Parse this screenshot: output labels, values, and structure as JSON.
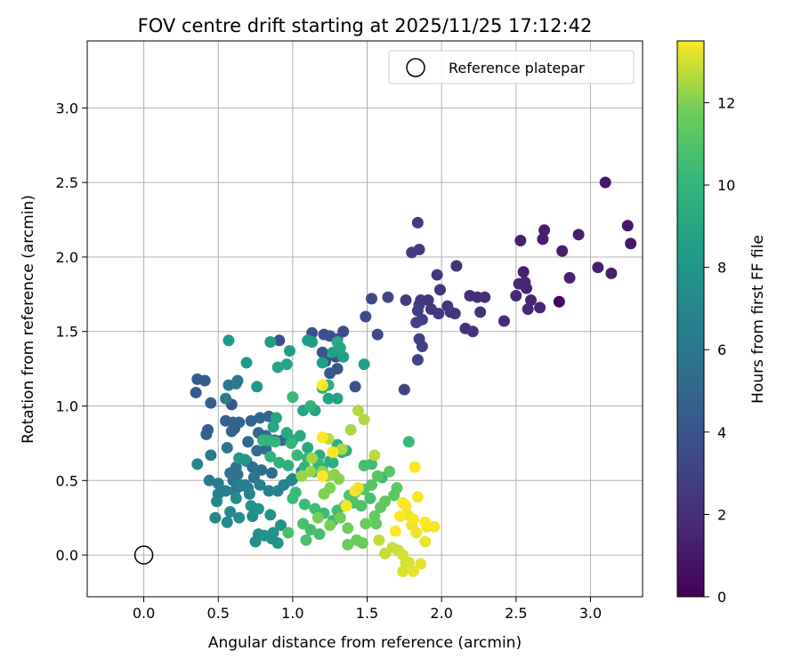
{
  "chart_data": {
    "type": "scatter",
    "title": "FOV centre drift starting at 2025/11/25 17:12:42",
    "xlabel": "Angular distance from reference (arcmin)",
    "ylabel": "Rotation from reference (arcmin)",
    "xlim": [
      -0.38,
      3.35
    ],
    "ylim": [
      -0.28,
      3.45
    ],
    "xticks": [
      "0.0",
      "0.5",
      "1.0",
      "1.5",
      "2.0",
      "2.5",
      "3.0"
    ],
    "yticks": [
      "0.0",
      "0.5",
      "1.0",
      "1.5",
      "2.0",
      "2.5",
      "3.0"
    ],
    "grid": true,
    "legend": {
      "label": "Reference platepar",
      "placement": "upper right"
    },
    "reference_point": {
      "x": 0.0,
      "y": 0.0
    },
    "colorbar": {
      "label": "Hours from first FF file",
      "min": 0,
      "max": 13.5,
      "colormap": "viridis",
      "ticks": [
        "0",
        "2",
        "4",
        "6",
        "8",
        "10",
        "12"
      ]
    },
    "points": [
      [
        3.1,
        2.5,
        1.0
      ],
      [
        3.27,
        2.09,
        1.0
      ],
      [
        3.25,
        2.21,
        1.0
      ],
      [
        2.69,
        2.18,
        1.2
      ],
      [
        2.68,
        2.12,
        1.2
      ],
      [
        2.92,
        2.15,
        1.2
      ],
      [
        2.81,
        2.04,
        1.2
      ],
      [
        2.53,
        2.11,
        1.3
      ],
      [
        3.05,
        1.93,
        1.3
      ],
      [
        3.14,
        1.89,
        1.3
      ],
      [
        2.86,
        1.86,
        1.4
      ],
      [
        2.79,
        1.7,
        0.1
      ],
      [
        2.55,
        1.9,
        1.4
      ],
      [
        2.56,
        1.83,
        1.5
      ],
      [
        2.57,
        1.79,
        1.5
      ],
      [
        2.52,
        1.82,
        1.6
      ],
      [
        2.6,
        1.71,
        1.6
      ],
      [
        2.66,
        1.66,
        1.6
      ],
      [
        2.58,
        1.65,
        1.7
      ],
      [
        2.5,
        1.74,
        1.7
      ],
      [
        2.42,
        1.57,
        1.8
      ],
      [
        2.29,
        1.73,
        2.0
      ],
      [
        2.24,
        1.73,
        2.0
      ],
      [
        2.19,
        1.74,
        2.0
      ],
      [
        2.26,
        1.63,
        2.1
      ],
      [
        2.21,
        1.5,
        2.2
      ],
      [
        2.16,
        1.52,
        2.2
      ],
      [
        2.1,
        1.94,
        2.2
      ],
      [
        2.09,
        1.62,
        2.3
      ],
      [
        2.06,
        1.63,
        2.3
      ],
      [
        2.04,
        1.67,
        2.4
      ],
      [
        1.99,
        1.78,
        2.4
      ],
      [
        1.97,
        1.88,
        2.4
      ],
      [
        1.98,
        1.62,
        2.5
      ],
      [
        1.93,
        1.65,
        2.5
      ],
      [
        1.91,
        1.71,
        2.5
      ],
      [
        1.86,
        1.71,
        2.6
      ],
      [
        1.85,
        1.68,
        2.6
      ],
      [
        1.84,
        2.23,
        2.6
      ],
      [
        1.85,
        2.05,
        2.6
      ],
      [
        1.8,
        2.03,
        2.7
      ],
      [
        1.76,
        1.71,
        2.7
      ],
      [
        1.87,
        1.58,
        2.8
      ],
      [
        1.84,
        1.64,
        2.8
      ],
      [
        1.83,
        1.56,
        2.9
      ],
      [
        1.85,
        1.45,
        2.9
      ],
      [
        1.87,
        1.4,
        3.0
      ],
      [
        1.84,
        1.31,
        3.0
      ],
      [
        1.75,
        1.11,
        3.1
      ],
      [
        1.64,
        1.73,
        3.2
      ],
      [
        1.53,
        1.72,
        3.3
      ],
      [
        1.57,
        1.48,
        3.4
      ],
      [
        1.49,
        1.6,
        3.4
      ],
      [
        1.34,
        1.5,
        3.5
      ],
      [
        1.3,
        1.45,
        3.6
      ],
      [
        1.25,
        1.47,
        3.6
      ],
      [
        1.21,
        1.48,
        3.7
      ],
      [
        1.13,
        1.49,
        3.7
      ],
      [
        1.42,
        1.13,
        3.8
      ],
      [
        0.91,
        1.44,
        3.8
      ],
      [
        1.2,
        1.36,
        3.9
      ],
      [
        1.22,
        1.3,
        4.0
      ],
      [
        1.29,
        1.33,
        4.0
      ],
      [
        1.3,
        1.25,
        4.1
      ],
      [
        1.25,
        1.22,
        4.2
      ],
      [
        0.59,
        1.01,
        4.2
      ],
      [
        0.35,
        1.09,
        4.3
      ],
      [
        0.36,
        1.18,
        4.4
      ],
      [
        0.41,
        1.17,
        4.4
      ],
      [
        0.45,
        1.02,
        4.5
      ],
      [
        0.43,
        0.84,
        4.6
      ],
      [
        0.42,
        0.81,
        4.6
      ],
      [
        0.55,
        0.9,
        4.6
      ],
      [
        0.6,
        0.89,
        4.7
      ],
      [
        0.61,
        0.85,
        4.7
      ],
      [
        0.59,
        0.83,
        4.8
      ],
      [
        0.64,
        0.89,
        4.8
      ],
      [
        0.72,
        0.9,
        4.9
      ],
      [
        0.78,
        0.92,
        4.9
      ],
      [
        0.84,
        0.93,
        5.0
      ],
      [
        0.7,
        0.76,
        5.0
      ],
      [
        0.77,
        0.82,
        5.1
      ],
      [
        0.82,
        0.8,
        5.2
      ],
      [
        0.88,
        0.77,
        5.2
      ],
      [
        0.93,
        0.77,
        5.3
      ],
      [
        0.76,
        0.7,
        5.3
      ],
      [
        0.82,
        0.71,
        5.4
      ],
      [
        0.69,
        0.63,
        5.4
      ],
      [
        0.73,
        0.59,
        5.5
      ],
      [
        0.79,
        0.57,
        5.5
      ],
      [
        0.86,
        0.55,
        5.6
      ],
      [
        0.74,
        0.52,
        5.7
      ],
      [
        0.63,
        0.54,
        5.7
      ],
      [
        0.58,
        0.55,
        5.8
      ],
      [
        0.62,
        0.59,
        5.8
      ],
      [
        0.68,
        0.47,
        5.9
      ],
      [
        0.64,
        0.46,
        5.9
      ],
      [
        0.6,
        0.5,
        6.0
      ],
      [
        0.56,
        0.72,
        6.0
      ],
      [
        0.62,
        1.15,
        6.1
      ],
      [
        0.63,
        1.17,
        6.1
      ],
      [
        0.57,
        1.14,
        6.2
      ],
      [
        0.55,
        1.05,
        6.2
      ],
      [
        0.45,
        0.67,
        6.3
      ],
      [
        0.44,
        0.5,
        6.3
      ],
      [
        0.5,
        0.48,
        6.4
      ],
      [
        0.5,
        0.41,
        6.4
      ],
      [
        0.55,
        0.43,
        6.5
      ],
      [
        0.61,
        0.43,
        6.5
      ],
      [
        0.65,
        0.47,
        6.6
      ],
      [
        0.7,
        0.45,
        6.6
      ],
      [
        0.71,
        0.41,
        6.7
      ],
      [
        0.78,
        0.47,
        6.7
      ],
      [
        0.84,
        0.43,
        6.8
      ],
      [
        0.9,
        0.43,
        6.8
      ],
      [
        0.94,
        0.47,
        6.9
      ],
      [
        0.99,
        0.5,
        6.9
      ],
      [
        1.0,
        0.51,
        7.0
      ],
      [
        1.06,
        0.56,
        7.0
      ],
      [
        0.36,
        0.61,
        7.1
      ],
      [
        0.49,
        0.36,
        7.1
      ],
      [
        0.48,
        0.25,
        7.2
      ],
      [
        0.56,
        0.22,
        7.2
      ],
      [
        0.58,
        0.29,
        7.3
      ],
      [
        0.64,
        0.25,
        7.3
      ],
      [
        0.62,
        0.38,
        7.4
      ],
      [
        0.73,
        0.26,
        7.4
      ],
      [
        0.77,
        0.14,
        7.5
      ],
      [
        0.75,
        0.09,
        7.5
      ],
      [
        0.81,
        0.13,
        7.6
      ],
      [
        0.86,
        0.11,
        7.6
      ],
      [
        0.9,
        0.08,
        7.7
      ],
      [
        0.87,
        0.15,
        7.7
      ],
      [
        0.92,
        0.2,
        7.8
      ],
      [
        0.85,
        0.27,
        7.8
      ],
      [
        0.77,
        0.31,
        7.9
      ],
      [
        0.72,
        0.33,
        7.9
      ],
      [
        0.68,
        0.64,
        8.0
      ],
      [
        0.64,
        0.65,
        8.0
      ],
      [
        0.76,
        1.13,
        8.1
      ],
      [
        0.69,
        1.29,
        8.1
      ],
      [
        0.57,
        1.44,
        8.2
      ],
      [
        0.85,
        1.43,
        8.3
      ],
      [
        0.98,
        1.37,
        8.3
      ],
      [
        1.1,
        1.44,
        8.4
      ],
      [
        1.13,
        1.43,
        8.4
      ],
      [
        1.2,
        1.29,
        8.5
      ],
      [
        1.27,
        1.36,
        8.5
      ],
      [
        1.34,
        1.33,
        8.6
      ],
      [
        1.48,
        1.28,
        8.6
      ],
      [
        1.3,
        1.05,
        8.7
      ],
      [
        1.24,
        1.05,
        8.7
      ],
      [
        1.15,
        0.97,
        8.8
      ],
      [
        1.07,
        0.97,
        8.8
      ],
      [
        0.96,
        1.28,
        8.9
      ],
      [
        0.9,
        1.26,
        8.9
      ],
      [
        0.89,
        0.92,
        9.0
      ],
      [
        0.87,
        0.86,
        9.0
      ],
      [
        0.96,
        0.82,
        9.1
      ],
      [
        1.0,
        0.77,
        9.1
      ],
      [
        1.05,
        0.8,
        9.2
      ],
      [
        1.1,
        0.72,
        9.2
      ],
      [
        1.18,
        0.67,
        9.3
      ],
      [
        1.25,
        0.63,
        9.3
      ],
      [
        1.33,
        0.69,
        9.4
      ],
      [
        1.3,
        0.74,
        9.4
      ],
      [
        1.36,
        0.7,
        9.5
      ],
      [
        1.27,
        0.62,
        9.5
      ],
      [
        1.2,
        0.58,
        9.6
      ],
      [
        1.14,
        0.56,
        9.6
      ],
      [
        1.08,
        0.59,
        9.7
      ],
      [
        0.97,
        0.6,
        9.7
      ],
      [
        0.91,
        0.62,
        9.8
      ],
      [
        0.85,
        0.66,
        9.8
      ],
      [
        0.8,
        0.77,
        9.9
      ],
      [
        0.83,
        0.77,
        9.9
      ],
      [
        0.88,
        0.76,
        10.0
      ],
      [
        0.99,
        0.75,
        10.0
      ],
      [
        1.03,
        0.67,
        10.1
      ],
      [
        1.1,
        0.65,
        10.1
      ],
      [
        1.17,
        0.62,
        10.2
      ],
      [
        1.02,
        0.42,
        10.2
      ],
      [
        1.0,
        0.38,
        10.3
      ],
      [
        1.08,
        0.34,
        10.3
      ],
      [
        1.15,
        0.31,
        10.4
      ],
      [
        1.21,
        0.28,
        10.4
      ],
      [
        1.3,
        0.3,
        10.5
      ],
      [
        1.27,
        0.23,
        10.5
      ],
      [
        1.18,
        0.14,
        10.6
      ],
      [
        1.12,
        0.17,
        10.6
      ],
      [
        1.07,
        0.21,
        10.7
      ],
      [
        0.97,
        0.15,
        10.7
      ],
      [
        1.09,
        0.1,
        10.8
      ],
      [
        1.3,
        1.43,
        9.1
      ],
      [
        1.32,
        1.39,
        9.0
      ],
      [
        1.24,
        1.14,
        9.5
      ],
      [
        1.2,
        1.12,
        9.6
      ],
      [
        1.12,
        1.0,
        9.8
      ],
      [
        1.0,
        1.06,
        10.3
      ],
      [
        1.78,
        0.76,
        10.2
      ],
      [
        1.6,
        0.52,
        10.3
      ],
      [
        1.53,
        0.61,
        10.5
      ],
      [
        1.48,
        0.6,
        10.6
      ],
      [
        1.52,
        0.38,
        10.7
      ],
      [
        1.46,
        0.33,
        10.8
      ],
      [
        1.41,
        0.35,
        10.9
      ],
      [
        1.35,
        0.33,
        10.9
      ],
      [
        1.38,
        0.4,
        11.0
      ],
      [
        1.42,
        0.42,
        11.0
      ],
      [
        1.48,
        0.44,
        11.1
      ],
      [
        1.53,
        0.47,
        11.1
      ],
      [
        1.57,
        0.53,
        11.2
      ],
      [
        1.65,
        0.56,
        11.2
      ],
      [
        1.7,
        0.45,
        11.3
      ],
      [
        1.68,
        0.4,
        11.3
      ],
      [
        1.62,
        0.36,
        11.4
      ],
      [
        1.59,
        0.32,
        11.4
      ],
      [
        1.55,
        0.26,
        11.5
      ],
      [
        1.56,
        0.21,
        11.5
      ],
      [
        1.49,
        0.21,
        11.6
      ],
      [
        1.47,
        0.08,
        11.6
      ],
      [
        1.43,
        0.1,
        11.7
      ],
      [
        1.37,
        0.07,
        11.7
      ],
      [
        1.37,
        0.18,
        11.8
      ],
      [
        1.32,
        0.25,
        11.8
      ],
      [
        1.25,
        0.2,
        11.9
      ],
      [
        1.17,
        0.25,
        11.9
      ],
      [
        1.21,
        0.41,
        12.0
      ],
      [
        1.25,
        0.45,
        12.0
      ],
      [
        1.31,
        0.51,
        12.1
      ],
      [
        1.28,
        0.54,
        12.1
      ],
      [
        1.23,
        0.53,
        12.2
      ],
      [
        1.2,
        0.56,
        12.2
      ],
      [
        1.12,
        0.56,
        12.3
      ],
      [
        1.06,
        0.53,
        12.3
      ],
      [
        1.13,
        0.65,
        12.4
      ],
      [
        1.27,
        0.69,
        12.4
      ],
      [
        1.33,
        0.71,
        12.5
      ],
      [
        1.39,
        0.84,
        12.5
      ],
      [
        1.44,
        0.97,
        12.6
      ],
      [
        1.48,
        0.91,
        12.6
      ],
      [
        1.24,
        0.78,
        12.7
      ],
      [
        1.55,
        0.67,
        12.7
      ],
      [
        1.58,
        0.1,
        12.8
      ],
      [
        1.62,
        0.01,
        12.8
      ],
      [
        1.67,
        0.05,
        12.9
      ],
      [
        1.71,
        0.03,
        12.9
      ],
      [
        1.74,
        0.0,
        13.0
      ],
      [
        1.76,
        -0.05,
        13.0
      ],
      [
        1.78,
        -0.05,
        13.1
      ],
      [
        1.74,
        -0.11,
        13.1
      ],
      [
        1.81,
        -0.11,
        13.2
      ],
      [
        1.86,
        -0.06,
        13.2
      ],
      [
        1.89,
        0.09,
        13.3
      ],
      [
        1.83,
        0.15,
        13.3
      ],
      [
        1.8,
        0.2,
        13.3
      ],
      [
        1.77,
        0.27,
        13.3
      ],
      [
        1.81,
        0.24,
        13.4
      ],
      [
        1.76,
        0.33,
        13.4
      ],
      [
        1.84,
        0.39,
        13.4
      ],
      [
        1.9,
        0.19,
        13.4
      ],
      [
        1.95,
        0.19,
        13.4
      ],
      [
        1.89,
        0.22,
        13.5
      ],
      [
        1.82,
        0.59,
        13.5
      ],
      [
        1.74,
        0.35,
        13.5
      ],
      [
        1.72,
        0.26,
        13.5
      ],
      [
        1.69,
        0.16,
        13.5
      ],
      [
        1.2,
        0.79,
        13.5
      ],
      [
        1.2,
        1.14,
        13.5
      ],
      [
        1.2,
        0.53,
        13.5
      ],
      [
        1.42,
        0.43,
        13.4
      ],
      [
        1.36,
        0.33,
        13.4
      ],
      [
        1.44,
        0.45,
        13.3
      ],
      [
        1.27,
        0.69,
        13.5
      ]
    ]
  }
}
